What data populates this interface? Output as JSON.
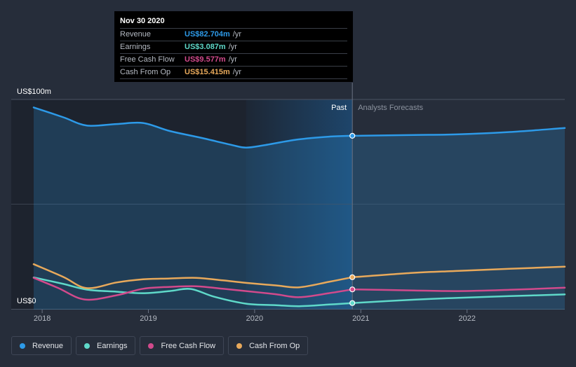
{
  "chart_data": {
    "type": "area",
    "title": "",
    "xlabel": "",
    "ylabel": "",
    "y_unit": "US$ m",
    "ylim": [
      0,
      100
    ],
    "xlim": [
      2017.92,
      2022.92
    ],
    "y_tick_labels": [
      {
        "value": 100,
        "label": "US$100m"
      },
      {
        "value": 0,
        "label": "US$0"
      }
    ],
    "x_ticks": [
      {
        "value": 2018,
        "label": "2018"
      },
      {
        "value": 2019,
        "label": "2019"
      },
      {
        "value": 2020,
        "label": "2020"
      },
      {
        "value": 2021,
        "label": "2021"
      },
      {
        "value": 2022,
        "label": "2022"
      }
    ],
    "past_label": "Past",
    "forecast_label": "Analysts Forecasts",
    "divider_x": 2020.92,
    "highlight_start_x": 2019.92,
    "series": [
      {
        "name": "Revenue",
        "color": "#2d9ae8",
        "fill": true,
        "points": [
          [
            2017.92,
            96.2
          ],
          [
            2018.2,
            91.5
          ],
          [
            2018.42,
            87.6
          ],
          [
            2018.7,
            88.3
          ],
          [
            2018.95,
            88.8
          ],
          [
            2019.2,
            85
          ],
          [
            2019.5,
            81.7
          ],
          [
            2019.78,
            78.4
          ],
          [
            2019.92,
            77.1
          ],
          [
            2020.1,
            78.3
          ],
          [
            2020.4,
            80.9
          ],
          [
            2020.7,
            82.3
          ],
          [
            2020.92,
            82.7
          ]
        ]
      },
      {
        "name": "Revenue (forecast)",
        "color": "#2d9ae8",
        "fill": true,
        "points": [
          [
            2020.92,
            82.7
          ],
          [
            2021.5,
            83.1
          ],
          [
            2021.92,
            83.4
          ],
          [
            2022.4,
            84.5
          ],
          [
            2022.92,
            86.4
          ]
        ]
      },
      {
        "name": "Earnings",
        "color": "#5fd9c9",
        "fill": false,
        "points": [
          [
            2017.92,
            15.3
          ],
          [
            2018.2,
            12.2
          ],
          [
            2018.42,
            9.5
          ],
          [
            2018.7,
            8.5
          ],
          [
            2018.95,
            7.8
          ],
          [
            2019.2,
            8.8
          ],
          [
            2019.4,
            9.8
          ],
          [
            2019.62,
            6.1
          ],
          [
            2019.92,
            2.8
          ],
          [
            2020.2,
            2.1
          ],
          [
            2020.42,
            1.6
          ],
          [
            2020.7,
            2.4
          ],
          [
            2020.92,
            3.1
          ]
        ]
      },
      {
        "name": "Earnings (forecast)",
        "color": "#5fd9c9",
        "fill": false,
        "points": [
          [
            2020.92,
            3.1
          ],
          [
            2021.5,
            4.7
          ],
          [
            2021.92,
            5.6
          ],
          [
            2022.4,
            6.4
          ],
          [
            2022.92,
            7.2
          ]
        ]
      },
      {
        "name": "Free Cash Flow",
        "color": "#d24a8c",
        "fill": false,
        "points": [
          [
            2017.92,
            15.1
          ],
          [
            2018.15,
            10.3
          ],
          [
            2018.4,
            4.8
          ],
          [
            2018.7,
            6.8
          ],
          [
            2018.95,
            9.9
          ],
          [
            2019.2,
            10.8
          ],
          [
            2019.45,
            11.1
          ],
          [
            2019.7,
            9.9
          ],
          [
            2019.92,
            8.8
          ],
          [
            2020.2,
            7.3
          ],
          [
            2020.42,
            5.9
          ],
          [
            2020.7,
            7.8
          ],
          [
            2020.92,
            9.6
          ]
        ]
      },
      {
        "name": "Free Cash Flow (forecast)",
        "color": "#d24a8c",
        "fill": false,
        "points": [
          [
            2020.92,
            9.6
          ],
          [
            2021.5,
            9.1
          ],
          [
            2021.92,
            8.8
          ],
          [
            2022.4,
            9.4
          ],
          [
            2022.92,
            10.4
          ]
        ]
      },
      {
        "name": "Cash From Op",
        "color": "#e8a95b",
        "fill": false,
        "points": [
          [
            2017.92,
            21.6
          ],
          [
            2018.2,
            15.5
          ],
          [
            2018.42,
            10.2
          ],
          [
            2018.7,
            12.9
          ],
          [
            2018.95,
            14.4
          ],
          [
            2019.2,
            14.8
          ],
          [
            2019.45,
            15.1
          ],
          [
            2019.7,
            13.9
          ],
          [
            2019.92,
            12.7
          ],
          [
            2020.2,
            11.5
          ],
          [
            2020.42,
            10.6
          ],
          [
            2020.7,
            13.2
          ],
          [
            2020.92,
            15.4
          ]
        ]
      },
      {
        "name": "Cash From Op (forecast)",
        "color": "#e8a95b",
        "fill": false,
        "points": [
          [
            2020.92,
            15.4
          ],
          [
            2021.5,
            17.5
          ],
          [
            2021.92,
            18.4
          ],
          [
            2022.4,
            19.4
          ],
          [
            2022.92,
            20.4
          ]
        ]
      }
    ],
    "markers": [
      {
        "series": "Revenue",
        "x": 2020.92,
        "y": 82.7,
        "color": "#2d9ae8"
      },
      {
        "series": "Cash From Op",
        "x": 2020.92,
        "y": 15.4,
        "color": "#e8a95b"
      },
      {
        "series": "Free Cash Flow",
        "x": 2020.92,
        "y": 9.6,
        "color": "#d24a8c"
      },
      {
        "series": "Earnings",
        "x": 2020.92,
        "y": 3.1,
        "color": "#5fd9c9"
      }
    ]
  },
  "tooltip": {
    "date": "Nov 30 2020",
    "rows": [
      {
        "label": "Revenue",
        "value": "US$82.704m",
        "unit": "/yr",
        "color": "#2d9ae8"
      },
      {
        "label": "Earnings",
        "value": "US$3.087m",
        "unit": "/yr",
        "color": "#5fd9c9"
      },
      {
        "label": "Free Cash Flow",
        "value": "US$9.577m",
        "unit": "/yr",
        "color": "#d24a8c"
      },
      {
        "label": "Cash From Op",
        "value": "US$15.415m",
        "unit": "/yr",
        "color": "#e8a95b"
      }
    ]
  },
  "legend": [
    {
      "label": "Revenue",
      "color": "#2d9ae8"
    },
    {
      "label": "Earnings",
      "color": "#5fd9c9"
    },
    {
      "label": "Free Cash Flow",
      "color": "#d24a8c"
    },
    {
      "label": "Cash From Op",
      "color": "#e8a95b"
    }
  ]
}
